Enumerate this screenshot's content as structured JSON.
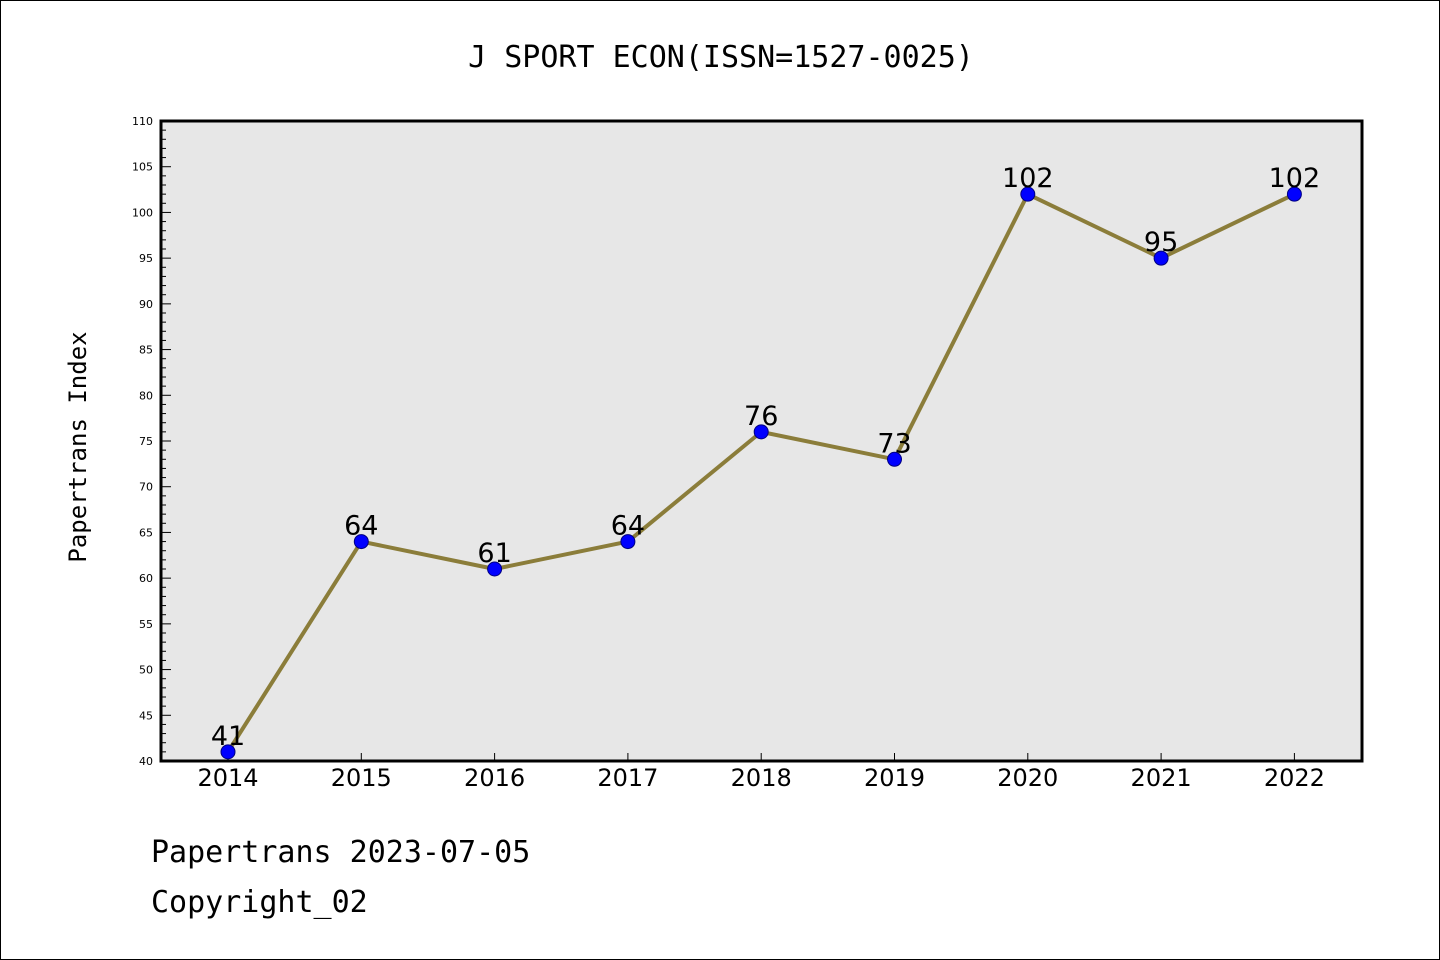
{
  "chart_data": {
    "type": "line",
    "title": "J SPORT ECON(ISSN=1527-0025)",
    "xlabel": "",
    "ylabel": "Papertrans Index",
    "categories": [
      "2014",
      "2015",
      "2016",
      "2017",
      "2018",
      "2019",
      "2020",
      "2021",
      "2022"
    ],
    "series": [
      {
        "values": [
          41,
          64,
          61,
          64,
          76,
          73,
          102,
          95,
          102
        ]
      }
    ],
    "data_labels": [
      "41",
      "64",
      "61",
      "64",
      "76",
      "73",
      "102",
      "95",
      "102"
    ],
    "ylim": [
      40,
      110
    ],
    "yticks": [
      40,
      45,
      50,
      55,
      60,
      65,
      70,
      75,
      80,
      85,
      90,
      95,
      100,
      105,
      110
    ],
    "grid": false,
    "legend": "none",
    "colors": {
      "line": "#8b7d3a",
      "marker": "#0000ff",
      "plot_background": "#e7e7e7",
      "frame": "#000000"
    }
  },
  "footer": {
    "line1": "Papertrans 2023-07-05",
    "line2": "Copyright_02"
  }
}
